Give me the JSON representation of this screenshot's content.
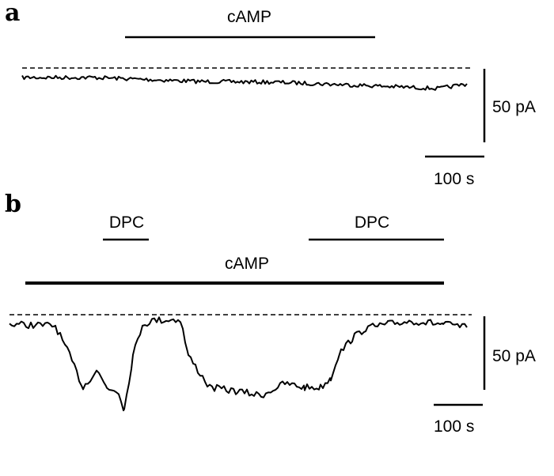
{
  "panels": [
    {
      "label": "a",
      "treatments": [
        "cAMP"
      ],
      "scale_current": "50 pA",
      "scale_time": "100 s"
    },
    {
      "label": "b",
      "treatments": [
        "DPC",
        "DPC",
        "cAMP"
      ],
      "scale_current": "50 pA",
      "scale_time": "100 s"
    }
  ]
}
